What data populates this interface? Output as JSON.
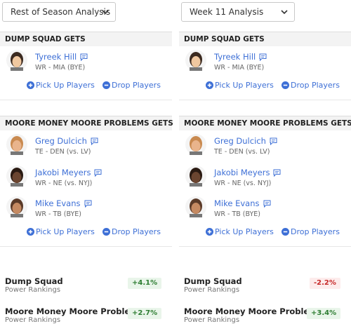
{
  "columns": [
    {
      "dropdown": "Rest of Season Analysis",
      "teams": [
        {
          "header": "DUMP SQUAD GETS",
          "players": [
            {
              "name": "Tyreek Hill",
              "detail": "WR - MIA (BYE)"
            }
          ]
        },
        {
          "header": "MOORE MONEY MOORE PROBLEMS GETS",
          "players": [
            {
              "name": "Greg Dulcich",
              "detail": "TE - DEN (vs. LV)"
            },
            {
              "name": "Jakobi Meyers",
              "detail": "WR - NE (vs. NYJ)"
            },
            {
              "name": "Mike Evans",
              "detail": "WR - TB (BYE)"
            }
          ]
        }
      ],
      "actions": [
        "Pick Up Players",
        "Drop Players"
      ],
      "rankings": [
        {
          "team": "Dump Squad",
          "label": "Power Rankings",
          "change": "+4.1%"
        },
        {
          "team": "Moore Money Moore Problems",
          "label": "Power Rankings",
          "change": "+2.7%"
        }
      ]
    },
    {
      "dropdown": "Week 11 Analysis",
      "teams": [
        {
          "header": "DUMP SQUAD GETS",
          "players": [
            {
              "name": "Tyreek Hill",
              "detail": "WR - MIA (BYE)"
            }
          ]
        },
        {
          "header": "MOORE MONEY MOORE PROBLEMS GETS",
          "players": [
            {
              "name": "Greg Dulcich",
              "detail": "TE - DEN (vs. LV)"
            },
            {
              "name": "Jakobi Meyers",
              "detail": "WR - NE (vs. NYJ)"
            },
            {
              "name": "Mike Evans",
              "detail": "WR - TB (BYE)"
            }
          ]
        }
      ],
      "actions": [
        "Pick Up Players",
        "Drop Players"
      ],
      "rankings": [
        {
          "team": "Dump Squad",
          "label": "Power Rankings",
          "change": "-2.2%"
        },
        {
          "team": "Moore Money Moore Problems",
          "label": "Power Rankings",
          "change": "+3.4%"
        }
      ]
    }
  ]
}
